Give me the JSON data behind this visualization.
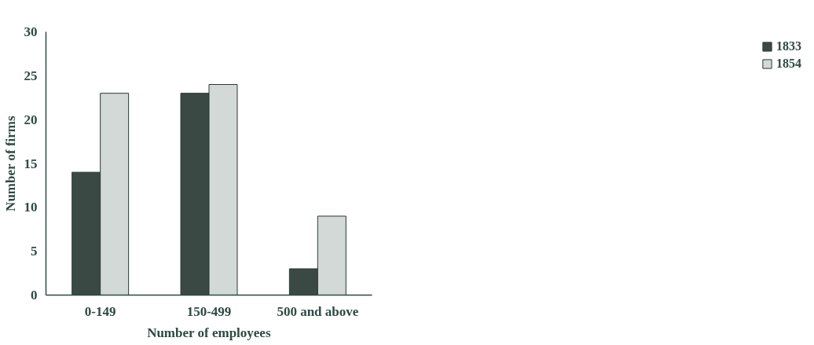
{
  "chart_data": {
    "type": "bar",
    "xlabel": "Number of employees",
    "ylabel": "Number of firms",
    "categories": [
      "0-149",
      "150-499",
      "500 and above"
    ],
    "series": [
      {
        "name": "1833",
        "color": "#3b4944",
        "values": [
          14,
          23,
          3
        ]
      },
      {
        "name": "1854",
        "color": "#d3d9d7",
        "values": [
          23,
          24,
          9
        ]
      }
    ],
    "ylim": [
      0,
      30
    ],
    "yticks": [
      0,
      5,
      10,
      15,
      20,
      25,
      30
    ],
    "grid": false,
    "legend": "right"
  }
}
